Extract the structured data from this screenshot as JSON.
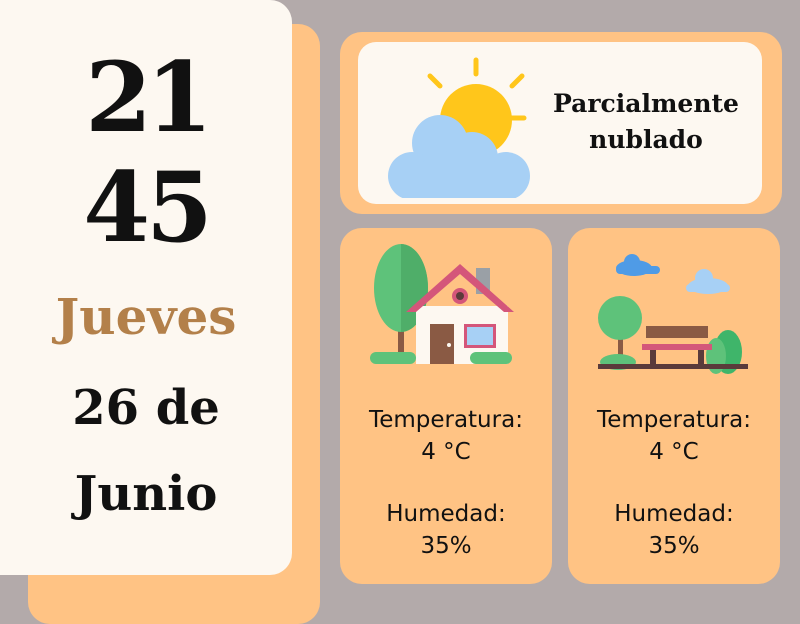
{
  "clock": {
    "hour": "21",
    "minute": "45",
    "weekday": "Jueves",
    "date_line": "26 de",
    "month": "Junio"
  },
  "condition": {
    "line1": "Parcialmente",
    "line2": "nublado",
    "icon": "sun-behind-cloud-icon"
  },
  "indoor": {
    "icon": "house-icon",
    "temperature_label": "Temperatura:",
    "temperature_value": "4 °C",
    "humidity_label": "Humedad:",
    "humidity_value": "35%"
  },
  "outdoor": {
    "icon": "park-bench-icon",
    "temperature_label": "Temperatura:",
    "temperature_value": "4 °C",
    "humidity_label": "Humedad:",
    "humidity_value": "35%"
  },
  "colors": {
    "background": "#b3aaaa",
    "card_orange": "#ffc384",
    "card_cream": "#fdf8f1",
    "weekday_brown": "#b3804a"
  }
}
